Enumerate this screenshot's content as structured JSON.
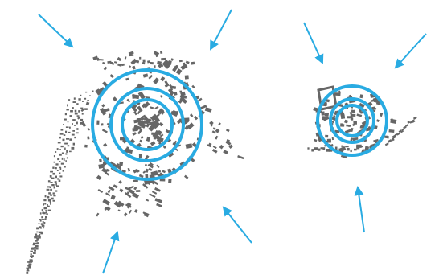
{
  "colors": {
    "background": "#ffffff",
    "accent": "#29abe2",
    "buildings": "#666666"
  },
  "settlements": [
    {
      "name": "large-settlement",
      "rings": 3,
      "incoming_arrows": 4
    },
    {
      "name": "small-settlement",
      "rings": 3,
      "incoming_arrows": 3
    }
  ],
  "icons": {
    "arrow": "arrow-icon",
    "ring": "concentric-ring-icon",
    "building": "building-footprint-icon"
  }
}
